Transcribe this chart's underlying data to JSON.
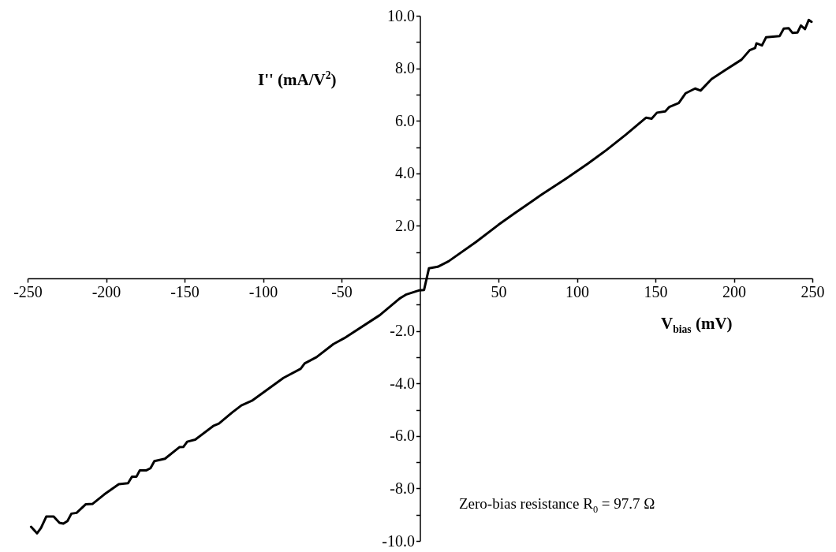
{
  "chart_data": {
    "type": "line",
    "xlabel": "V$_{bias}$ (mV)",
    "ylabel": "I'' (mA/V$^{2}$)",
    "annotations": [
      "Zero-bias resistance R$_{0}$ = 97.7  Ω"
    ],
    "xlim": [
      -250,
      250
    ],
    "ylim": [
      -10,
      10
    ],
    "xticks": [
      -250,
      -200,
      -150,
      -100,
      -50,
      50,
      100,
      150,
      200,
      250
    ],
    "yticks": [
      {
        "value": -10,
        "label": "-10.0"
      },
      {
        "value": -9,
        "label": null
      },
      {
        "value": -8,
        "label": "-8.0"
      },
      {
        "value": -7,
        "label": null
      },
      {
        "value": -6,
        "label": "-6.0"
      },
      {
        "value": -5,
        "label": null
      },
      {
        "value": -4,
        "label": "-4.0"
      },
      {
        "value": -3,
        "label": null
      },
      {
        "value": -2,
        "label": "-2.0"
      },
      {
        "value": -1,
        "label": null
      },
      {
        "value": 1,
        "label": null
      },
      {
        "value": 2,
        "label": "2.0"
      },
      {
        "value": 3,
        "label": null
      },
      {
        "value": 4,
        "label": "4.0"
      },
      {
        "value": 5,
        "label": null
      },
      {
        "value": 6,
        "label": "6.0"
      },
      {
        "value": 7,
        "label": null
      },
      {
        "value": 8,
        "label": "8.0"
      },
      {
        "value": 9,
        "label": null
      },
      {
        "value": 10,
        "label": "10.0"
      }
    ],
    "grid": false,
    "marker": "none",
    "line_style": "solid",
    "series": [
      {
        "color": "#000000",
        "x": [
          -247.8,
          -244,
          -241.5,
          -238.1,
          -233.4,
          -229.7,
          -227.2,
          -224.6,
          -222.1,
          -218.8,
          -212.9,
          -208.7,
          -201.2,
          -191.9,
          -186,
          -183.5,
          -180.6,
          -178.5,
          -174.3,
          -171.7,
          -169.2,
          -162.5,
          -153.3,
          -150.8,
          -148.3,
          -143.2,
          -131.4,
          -128.1,
          -119.7,
          -113.8,
          -107.1,
          -87,
          -76,
          -73.5,
          -65.9,
          -55.1,
          -48.3,
          -25.6,
          -13,
          -8.6,
          -0.8,
          2.6,
          5.7,
          11.3,
          18.2,
          35.6,
          50,
          59.9,
          77.3,
          92.9,
          106.8,
          118.9,
          131.1,
          144.1,
          147.6,
          151,
          156.3,
          158.9,
          164.9,
          169.3,
          175.3,
          178.8,
          185.8,
          194.4,
          204.9,
          210.1,
          213.5,
          214.4,
          217.9,
          220.5,
          229.2,
          231.8,
          234.9,
          237.3,
          240.5,
          242.7,
          245.3,
          247.7,
          249.5
        ],
        "values": [
          -9.46,
          -9.71,
          -9.51,
          -9.07,
          -9.07,
          -9.31,
          -9.34,
          -9.24,
          -8.96,
          -8.93,
          -8.6,
          -8.59,
          -8.23,
          -7.84,
          -7.8,
          -7.55,
          -7.55,
          -7.31,
          -7.31,
          -7.23,
          -6.96,
          -6.87,
          -6.43,
          -6.42,
          -6.22,
          -6.14,
          -5.61,
          -5.53,
          -5.11,
          -4.84,
          -4.66,
          -3.79,
          -3.44,
          -3.24,
          -3.0,
          -2.5,
          -2.28,
          -1.4,
          -0.77,
          -0.61,
          -0.46,
          -0.44,
          0.38,
          0.44,
          0.65,
          1.38,
          2.04,
          2.46,
          3.18,
          3.79,
          4.36,
          4.89,
          5.47,
          6.12,
          6.08,
          6.31,
          6.36,
          6.53,
          6.68,
          7.05,
          7.23,
          7.15,
          7.59,
          7.93,
          8.33,
          8.69,
          8.77,
          8.95,
          8.87,
          9.18,
          9.23,
          9.51,
          9.53,
          9.35,
          9.36,
          9.63,
          9.49,
          9.84,
          9.77
        ]
      }
    ]
  }
}
